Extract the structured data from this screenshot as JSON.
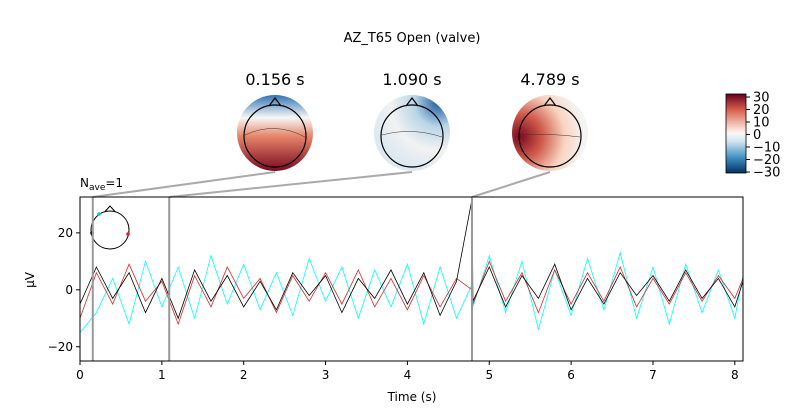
{
  "chart_data": {
    "type": "line",
    "title": "AZ_T65 Open (valve)",
    "nave": {
      "base": "N",
      "sub": "ave",
      "rest": "=1"
    },
    "xlabel": "Time (s)",
    "ylabel": "µV",
    "xlim": [
      0,
      8.1
    ],
    "xticks": [
      0,
      1,
      2,
      3,
      4,
      5,
      6,
      7,
      8
    ],
    "ylim": [
      -25,
      32.6
    ],
    "yticks": [
      {
        "value": -20,
        "label": "−20"
      },
      0,
      20
    ],
    "topomaps": [
      {
        "time": 0.156,
        "label": "0.156 s"
      },
      {
        "time": 1.09,
        "label": "1.090 s"
      },
      {
        "time": 4.789,
        "label": "4.789 s"
      }
    ],
    "colorbar": {
      "clim": [
        -30.8,
        32.4
      ],
      "ticks": [
        30,
        20,
        10,
        0,
        {
          "value": -10,
          "label": "−10"
        },
        {
          "value": -20,
          "label": "−20"
        },
        {
          "value": -30,
          "label": "−30"
        }
      ]
    },
    "x": [
      0,
      0.2,
      0.4,
      0.6,
      0.8,
      1.0,
      1.2,
      1.4,
      1.6,
      1.8,
      2.0,
      2.2,
      2.4,
      2.6,
      2.8,
      3.0,
      3.2,
      3.4,
      3.6,
      3.8,
      4.0,
      4.2,
      4.4,
      4.6,
      4.79,
      4.8,
      5.0,
      5.2,
      5.4,
      5.6,
      5.8,
      6.0,
      6.2,
      6.4,
      6.6,
      6.8,
      7.0,
      7.2,
      7.4,
      7.6,
      7.8,
      8.0,
      8.1
    ],
    "series": [
      {
        "color": "#00ffff",
        "values": [
          -15,
          -8,
          4,
          -12,
          10,
          -6,
          8,
          -10,
          12,
          -5,
          9,
          -7,
          6,
          -9,
          11,
          -4,
          8,
          -10,
          7,
          -6,
          9,
          -12,
          8,
          -10,
          2,
          -6,
          12,
          -8,
          10,
          -14,
          7,
          -9,
          11,
          -7,
          13,
          -10,
          8,
          -12,
          9,
          -8,
          7,
          -10,
          5
        ]
      },
      {
        "color": "#d62728",
        "values": [
          -10,
          6,
          -5,
          9,
          -4,
          3,
          -12,
          5,
          -6,
          8,
          -3,
          4,
          -8,
          5,
          -4,
          6,
          -5,
          7,
          -6,
          4,
          -7,
          5,
          -6,
          4,
          0,
          -5,
          10,
          -4,
          6,
          -8,
          7,
          -5,
          6,
          -4,
          8,
          -6,
          4,
          -5,
          6,
          -4,
          5,
          -3,
          4
        ]
      },
      {
        "color": "#000000",
        "values": [
          -5,
          8,
          -3,
          6,
          -8,
          4,
          -10,
          7,
          -4,
          5,
          -6,
          3,
          -7,
          6,
          -2,
          5,
          -8,
          4,
          -3,
          7,
          -5,
          6,
          -9,
          3,
          32,
          -4,
          8,
          -6,
          5,
          -3,
          9,
          -7,
          4,
          -5,
          6,
          -2,
          5,
          -4,
          7,
          -3,
          4,
          -6,
          3
        ]
      }
    ]
  }
}
